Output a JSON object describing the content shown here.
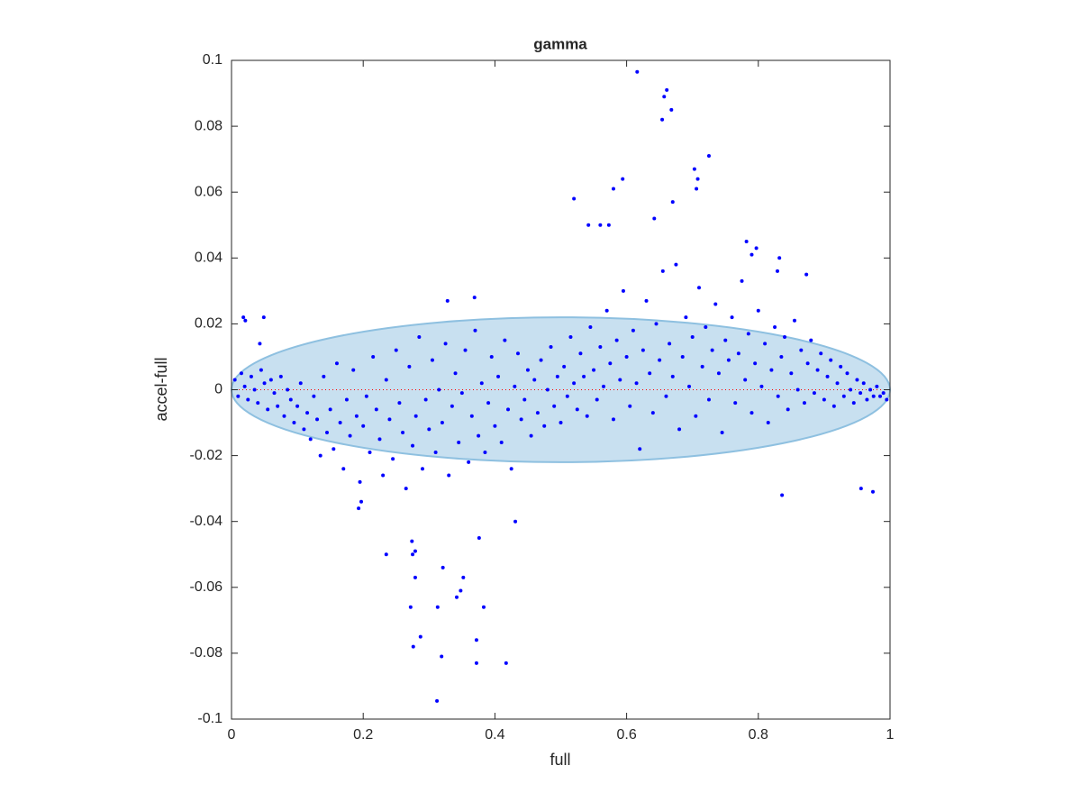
{
  "chart_data": {
    "type": "scatter",
    "title": "gamma",
    "x_label": "full",
    "y_label": "accel-full",
    "color": "#0000ff",
    "xlim": [
      0,
      1
    ],
    "xticks": [
      0,
      0.2,
      0.4,
      0.6,
      0.8,
      1
    ],
    "ylim": [
      -0.1,
      0.1
    ],
    "yticks": [
      -0.1,
      -0.08,
      -0.06,
      -0.04,
      -0.02,
      0,
      0.02,
      0.04,
      0.06,
      0.08,
      0.1
    ],
    "ellipse": {
      "center_x": 0.5,
      "center_y": 0,
      "width": 1,
      "height": 0.044,
      "color": "#c8e0f0",
      "edge_color": "#8ec0e0"
    },
    "reference_line": {
      "y": 0,
      "color": "#ff0000"
    },
    "x": [
      0.005,
      0.01,
      0.015,
      0.02,
      0.025,
      0.03,
      0.035,
      0.04,
      0.045,
      0.05,
      0.055,
      0.06,
      0.065,
      0.07,
      0.075,
      0.08,
      0.085,
      0.09,
      0.095,
      0.1,
      0.105,
      0.11,
      0.115,
      0.12,
      0.125,
      0.13,
      0.135,
      0.14,
      0.145,
      0.15,
      0.155,
      0.16,
      0.165,
      0.17,
      0.175,
      0.18,
      0.185,
      0.19,
      0.195,
      0.2,
      0.205,
      0.21,
      0.215,
      0.22,
      0.225,
      0.23,
      0.235,
      0.24,
      0.245,
      0.25,
      0.255,
      0.26,
      0.265,
      0.27,
      0.275,
      0.28,
      0.285,
      0.29,
      0.295,
      0.3,
      0.305,
      0.31,
      0.315,
      0.32,
      0.325,
      0.33,
      0.335,
      0.34,
      0.345,
      0.35,
      0.355,
      0.36,
      0.365,
      0.37,
      0.375,
      0.38,
      0.385,
      0.39,
      0.395,
      0.4,
      0.405,
      0.41,
      0.415,
      0.42,
      0.425,
      0.43,
      0.435,
      0.44,
      0.445,
      0.45,
      0.455,
      0.46,
      0.465,
      0.47,
      0.475,
      0.48,
      0.485,
      0.49,
      0.495,
      0.5,
      0.505,
      0.51,
      0.515,
      0.52,
      0.525,
      0.53,
      0.535,
      0.54,
      0.545,
      0.55,
      0.555,
      0.56,
      0.565,
      0.57,
      0.575,
      0.58,
      0.585,
      0.59,
      0.595,
      0.6,
      0.605,
      0.61,
      0.615,
      0.62,
      0.625,
      0.63,
      0.635,
      0.64,
      0.645,
      0.65,
      0.655,
      0.66,
      0.665,
      0.67,
      0.675,
      0.68,
      0.685,
      0.69,
      0.695,
      0.7,
      0.705,
      0.71,
      0.715,
      0.72,
      0.725,
      0.73,
      0.735,
      0.74,
      0.745,
      0.75,
      0.755,
      0.76,
      0.765,
      0.77,
      0.775,
      0.78,
      0.785,
      0.79,
      0.795,
      0.8,
      0.805,
      0.81,
      0.815,
      0.82,
      0.825,
      0.83,
      0.835,
      0.84,
      0.845,
      0.85,
      0.855,
      0.86,
      0.865,
      0.87,
      0.875,
      0.88,
      0.885,
      0.89,
      0.895,
      0.9,
      0.905,
      0.91,
      0.915,
      0.92,
      0.925,
      0.93,
      0.935,
      0.94,
      0.945,
      0.95,
      0.955,
      0.96,
      0.965,
      0.97,
      0.975,
      0.98,
      0.985,
      0.99,
      0.995,
      0.616,
      0.661,
      0.657,
      0.668,
      0.654,
      0.725,
      0.703,
      0.708,
      0.706,
      0.594,
      0.58,
      0.52,
      0.67,
      0.642,
      0.542,
      0.56,
      0.573,
      0.782,
      0.312,
      0.372,
      0.417,
      0.319,
      0.276,
      0.287,
      0.372,
      0.272,
      0.313,
      0.383,
      0.342,
      0.348,
      0.352,
      0.279,
      0.321,
      0.275,
      0.279,
      0.274,
      0.235,
      0.376,
      0.431,
      0.836,
      0.956,
      0.974,
      0.193,
      0.197,
      0.018,
      0.021,
      0.049,
      0.043,
      0.328,
      0.369,
      0.797,
      0.79,
      0.832,
      0.829,
      0.873
    ],
    "values": [
      0.003,
      -0.002,
      0.005,
      0.001,
      -0.003,
      0.004,
      0,
      -0.004,
      0.006,
      0.002,
      -0.006,
      0.003,
      -0.001,
      -0.005,
      0.004,
      -0.008,
      0,
      -0.003,
      -0.01,
      -0.005,
      0.002,
      -0.012,
      -0.007,
      -0.015,
      -0.002,
      -0.009,
      -0.02,
      0.004,
      -0.013,
      -0.006,
      -0.018,
      0.008,
      -0.01,
      -0.024,
      -0.003,
      -0.014,
      0.006,
      -0.008,
      -0.028,
      -0.011,
      -0.002,
      -0.019,
      0.01,
      -0.006,
      -0.015,
      -0.026,
      0.003,
      -0.009,
      -0.021,
      0.012,
      -0.004,
      -0.013,
      -0.03,
      0.007,
      -0.017,
      -0.008,
      0.016,
      -0.024,
      -0.003,
      -0.012,
      0.009,
      -0.019,
      0,
      -0.01,
      0.014,
      -0.026,
      -0.005,
      0.005,
      -0.016,
      -0.001,
      0.012,
      -0.022,
      -0.008,
      0.018,
      -0.014,
      0.002,
      -0.019,
      -0.004,
      0.01,
      -0.011,
      0.004,
      -0.016,
      0.015,
      -0.006,
      -0.024,
      0.001,
      0.011,
      -0.009,
      -0.003,
      0.006,
      -0.014,
      0.003,
      -0.007,
      0.009,
      -0.011,
      0,
      0.013,
      -0.005,
      0.004,
      -0.01,
      0.007,
      -0.002,
      0.016,
      0.002,
      -0.006,
      0.011,
      0.004,
      -0.008,
      0.019,
      0.006,
      -0.003,
      0.013,
      0.001,
      0.024,
      0.008,
      -0.009,
      0.015,
      0.003,
      0.03,
      0.01,
      -0.005,
      0.018,
      0.002,
      -0.018,
      0.012,
      0.027,
      0.005,
      -0.007,
      0.02,
      0.009,
      0.036,
      -0.002,
      0.014,
      0.004,
      0.038,
      -0.012,
      0.01,
      0.022,
      0.001,
      0.016,
      -0.008,
      0.031,
      0.007,
      0.019,
      -0.003,
      0.012,
      0.026,
      0.005,
      -0.013,
      0.015,
      0.009,
      0.022,
      -0.004,
      0.011,
      0.033,
      0.003,
      0.017,
      -0.007,
      0.008,
      0.024,
      0.001,
      0.014,
      -0.01,
      0.006,
      0.019,
      -0.002,
      0.01,
      0.016,
      -0.006,
      0.005,
      0.021,
      0,
      0.012,
      -0.004,
      0.008,
      0.015,
      -0.001,
      0.006,
      0.011,
      -0.003,
      0.004,
      0.009,
      -0.005,
      0.002,
      0.007,
      -0.002,
      0.005,
      0,
      -0.004,
      0.003,
      -0.001,
      0.002,
      -0.003,
      0,
      -0.002,
      0.001,
      -0.002,
      -0.001,
      -0.003,
      0.0965,
      0.091,
      0.089,
      0.085,
      0.082,
      0.071,
      0.067,
      0.064,
      0.061,
      0.064,
      0.061,
      0.058,
      0.057,
      0.052,
      0.05,
      0.05,
      0.05,
      0.045,
      -0.0945,
      -0.083,
      -0.083,
      -0.081,
      -0.078,
      -0.075,
      -0.076,
      -0.066,
      -0.066,
      -0.066,
      -0.063,
      -0.061,
      -0.057,
      -0.057,
      -0.054,
      -0.05,
      -0.049,
      -0.046,
      -0.05,
      -0.045,
      -0.04,
      -0.032,
      -0.03,
      -0.031,
      -0.036,
      -0.034,
      0.022,
      0.021,
      0.022,
      0.014,
      0.027,
      0.028,
      0.043,
      0.041,
      0.04,
      0.036,
      0.035
    ]
  }
}
